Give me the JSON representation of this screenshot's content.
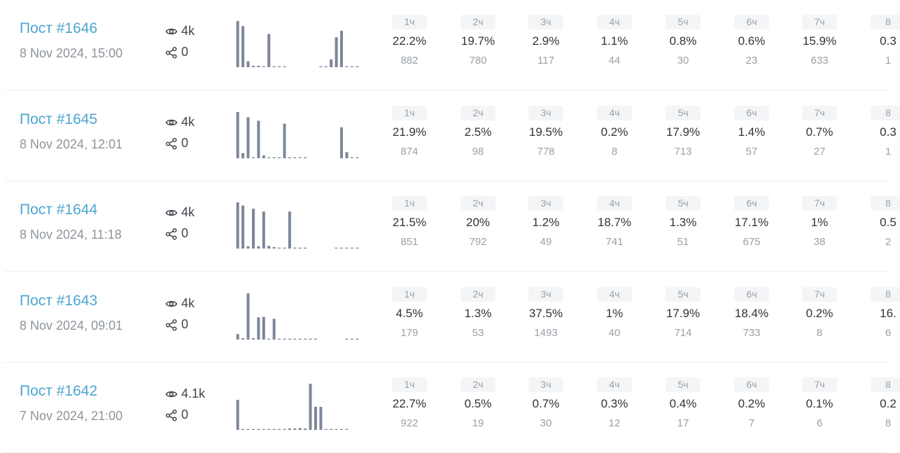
{
  "posts": [
    {
      "title": "Пост #1646",
      "date": "8 Nov 2024, 15:00",
      "views": "4k",
      "shares": "0",
      "bars": [
        100,
        89,
        13,
        3,
        3,
        2,
        72,
        2,
        2,
        2,
        0,
        0,
        0,
        0,
        0,
        0,
        2,
        2,
        17,
        65,
        79,
        2,
        2,
        2
      ],
      "hours": [
        {
          "label": "1ч",
          "pct": "22.2%",
          "count": "882"
        },
        {
          "label": "2ч",
          "pct": "19.7%",
          "count": "780"
        },
        {
          "label": "3ч",
          "pct": "2.9%",
          "count": "117"
        },
        {
          "label": "4ч",
          "pct": "1.1%",
          "count": "44"
        },
        {
          "label": "5ч",
          "pct": "0.8%",
          "count": "30"
        },
        {
          "label": "6ч",
          "pct": "0.6%",
          "count": "23"
        },
        {
          "label": "7ч",
          "pct": "15.9%",
          "count": "633"
        },
        {
          "label": "8",
          "pct": "0.3",
          "count": "1"
        }
      ]
    },
    {
      "title": "Пост #1645",
      "date": "8 Nov 2024, 12:01",
      "views": "4k",
      "shares": "0",
      "bars": [
        100,
        11,
        89,
        2,
        81,
        6,
        2,
        2,
        2,
        75,
        2,
        2,
        2,
        2,
        0,
        0,
        0,
        0,
        0,
        0,
        67,
        13,
        2,
        2
      ],
      "hours": [
        {
          "label": "1ч",
          "pct": "21.9%",
          "count": "874"
        },
        {
          "label": "2ч",
          "pct": "2.5%",
          "count": "98"
        },
        {
          "label": "3ч",
          "pct": "19.5%",
          "count": "778"
        },
        {
          "label": "4ч",
          "pct": "0.2%",
          "count": "8"
        },
        {
          "label": "5ч",
          "pct": "17.9%",
          "count": "713"
        },
        {
          "label": "6ч",
          "pct": "1.4%",
          "count": "57"
        },
        {
          "label": "7ч",
          "pct": "0.7%",
          "count": "27"
        },
        {
          "label": "8",
          "pct": "0.3",
          "count": "1"
        }
      ]
    },
    {
      "title": "Пост #1644",
      "date": "8 Nov 2024, 11:18",
      "views": "4k",
      "shares": "0",
      "bars": [
        100,
        93,
        5,
        86,
        5,
        80,
        6,
        3,
        2,
        2,
        80,
        2,
        2,
        2,
        0,
        0,
        0,
        0,
        0,
        2,
        2,
        2,
        2,
        2
      ],
      "hours": [
        {
          "label": "1ч",
          "pct": "21.5%",
          "count": "851"
        },
        {
          "label": "2ч",
          "pct": "20%",
          "count": "792"
        },
        {
          "label": "3ч",
          "pct": "1.2%",
          "count": "49"
        },
        {
          "label": "4ч",
          "pct": "18.7%",
          "count": "741"
        },
        {
          "label": "5ч",
          "pct": "1.3%",
          "count": "51"
        },
        {
          "label": "6ч",
          "pct": "17.1%",
          "count": "675"
        },
        {
          "label": "7ч",
          "pct": "1%",
          "count": "38"
        },
        {
          "label": "8",
          "pct": "0.5",
          "count": "2"
        }
      ]
    },
    {
      "title": "Пост #1643",
      "date": "8 Nov 2024, 09:01",
      "views": "4k",
      "shares": "0",
      "bars": [
        12,
        3,
        100,
        3,
        48,
        49,
        2,
        45,
        2,
        2,
        2,
        2,
        2,
        2,
        2,
        2,
        0,
        0,
        0,
        0,
        0,
        2,
        2,
        2
      ],
      "hours": [
        {
          "label": "1ч",
          "pct": "4.5%",
          "count": "179"
        },
        {
          "label": "2ч",
          "pct": "1.3%",
          "count": "53"
        },
        {
          "label": "3ч",
          "pct": "37.5%",
          "count": "1493"
        },
        {
          "label": "4ч",
          "pct": "1%",
          "count": "40"
        },
        {
          "label": "5ч",
          "pct": "17.9%",
          "count": "714"
        },
        {
          "label": "6ч",
          "pct": "18.4%",
          "count": "733"
        },
        {
          "label": "7ч",
          "pct": "0.2%",
          "count": "8"
        },
        {
          "label": "8",
          "pct": "16.",
          "count": "6"
        }
      ]
    },
    {
      "title": "Пост #1642",
      "date": "7 Nov 2024, 21:00",
      "views": "4.1k",
      "shares": "0",
      "bars": [
        65,
        2,
        2,
        2,
        2,
        2,
        2,
        2,
        2,
        2,
        3,
        3,
        4,
        3,
        100,
        50,
        50,
        2,
        2,
        2,
        2,
        2,
        0,
        0
      ],
      "hours": [
        {
          "label": "1ч",
          "pct": "22.7%",
          "count": "922"
        },
        {
          "label": "2ч",
          "pct": "0.5%",
          "count": "19"
        },
        {
          "label": "3ч",
          "pct": "0.7%",
          "count": "30"
        },
        {
          "label": "4ч",
          "pct": "0.3%",
          "count": "12"
        },
        {
          "label": "5ч",
          "pct": "0.4%",
          "count": "17"
        },
        {
          "label": "6ч",
          "pct": "0.2%",
          "count": "7"
        },
        {
          "label": "7ч",
          "pct": "0.1%",
          "count": "6"
        },
        {
          "label": "8",
          "pct": "0.2",
          "count": "8"
        }
      ]
    }
  ],
  "colors": {
    "title": "#4ea5cf",
    "bar": "#7d8797",
    "badge_bg": "#f4f5f6",
    "divider": "#eceef1"
  },
  "icons": {
    "views": "eye-icon",
    "shares": "share-icon"
  }
}
